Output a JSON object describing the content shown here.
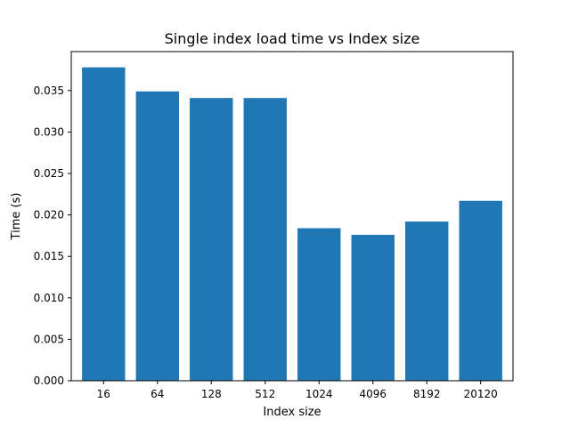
{
  "chart_data": {
    "type": "bar",
    "title": "Single index load time vs Index size",
    "xlabel": "Index size",
    "ylabel": "Time (s)",
    "categories": [
      "16",
      "64",
      "128",
      "512",
      "1024",
      "4096",
      "8192",
      "20120"
    ],
    "values": [
      0.0378,
      0.0349,
      0.0341,
      0.0341,
      0.0184,
      0.0176,
      0.0192,
      0.0217
    ],
    "ylim": [
      0,
      0.0397
    ],
    "yticks": [
      "0.000",
      "0.005",
      "0.010",
      "0.015",
      "0.020",
      "0.025",
      "0.030",
      "0.035"
    ],
    "bar_color": "#1f77b4",
    "grid": false,
    "legend": "none"
  }
}
